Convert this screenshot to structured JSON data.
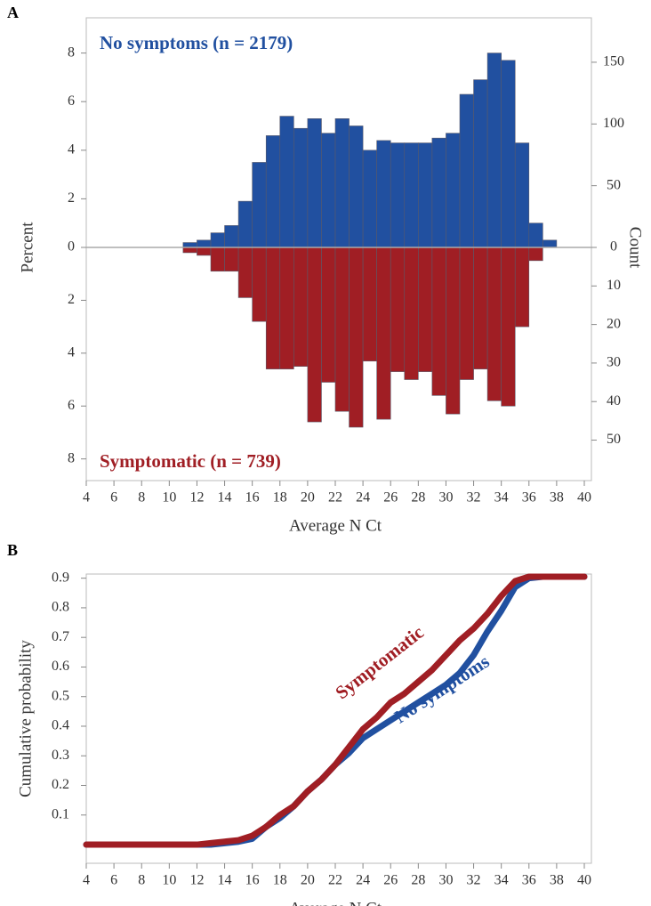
{
  "chart_data": [
    {
      "type": "mirror_histogram",
      "panel": "A",
      "xlabel": "Average N Ct",
      "ylabel": "Percent",
      "y2label": "Count",
      "bins": [
        11,
        12,
        13,
        14,
        15,
        16,
        17,
        18,
        19,
        20,
        21,
        22,
        23,
        24,
        25,
        26,
        27,
        28,
        29,
        30,
        31,
        32,
        33,
        34,
        35,
        36,
        37,
        38
      ],
      "xlim": [
        4,
        40
      ],
      "xticks": [
        4,
        6,
        8,
        10,
        12,
        14,
        16,
        18,
        20,
        22,
        24,
        26,
        28,
        30,
        32,
        34,
        36,
        38,
        40
      ],
      "series": [
        {
          "name": "No symptoms (n = 2179)",
          "color": "#2150a0",
          "direction": "up",
          "values": [
            0.2,
            0.3,
            0.6,
            0.9,
            1.9,
            3.5,
            4.6,
            5.4,
            4.9,
            5.3,
            4.7,
            5.3,
            5.0,
            4.0,
            4.4,
            4.3,
            4.3,
            4.3,
            4.5,
            4.7,
            6.3,
            6.9,
            8.0,
            7.7,
            4.3,
            1.0,
            0.3
          ],
          "ylim": [
            0,
            9.45
          ],
          "yticks": [
            0,
            2,
            4,
            6,
            8
          ],
          "y2lim": [
            0,
            186
          ],
          "y2ticks": [
            0,
            50,
            100,
            150
          ]
        },
        {
          "name": "Symptomatic (n = 739)",
          "color": "#a01e24",
          "direction": "down",
          "values": [
            0.2,
            0.3,
            0.9,
            0.9,
            1.9,
            2.8,
            4.6,
            4.6,
            4.5,
            6.6,
            5.1,
            6.2,
            6.8,
            4.3,
            6.5,
            4.7,
            5.0,
            4.7,
            5.6,
            6.3,
            5.0,
            4.6,
            5.8,
            6.0,
            3.0,
            0.5,
            0
          ],
          "ylim": [
            0,
            8.82
          ],
          "yticks": [
            2,
            4,
            6,
            8
          ],
          "y2lim": [
            0,
            60.5
          ],
          "y2ticks": [
            10,
            20,
            30,
            40,
            50
          ]
        }
      ]
    },
    {
      "type": "line",
      "panel": "B",
      "xlabel": "Average N Ct",
      "ylabel": "Cumulative probability",
      "x": [
        4,
        12,
        13,
        14,
        15,
        16,
        17,
        18,
        19,
        20,
        21,
        22,
        23,
        24,
        25,
        26,
        27,
        28,
        29,
        30,
        31,
        32,
        33,
        34,
        35,
        36,
        37,
        40
      ],
      "xlim": [
        4,
        40
      ],
      "xticks": [
        4,
        6,
        8,
        10,
        12,
        14,
        16,
        18,
        20,
        22,
        24,
        26,
        28,
        30,
        32,
        34,
        36,
        38,
        40
      ],
      "ylim": [
        -0.063,
        0.914
      ],
      "yticks": [
        0.1,
        0.2,
        0.3,
        0.4,
        0.5,
        0.6,
        0.7,
        0.8,
        0.9
      ],
      "series": [
        {
          "name": "No symptoms",
          "color": "#2150a0",
          "values": [
            0,
            0,
            0,
            0.005,
            0.01,
            0.02,
            0.06,
            0.09,
            0.13,
            0.18,
            0.22,
            0.27,
            0.31,
            0.36,
            0.39,
            0.42,
            0.45,
            0.48,
            0.51,
            0.54,
            0.58,
            0.64,
            0.72,
            0.79,
            0.87,
            0.9,
            0.905,
            0.905
          ]
        },
        {
          "name": "Symptomatic",
          "color": "#a01e24",
          "values": [
            0,
            0,
            0.005,
            0.01,
            0.015,
            0.03,
            0.06,
            0.1,
            0.13,
            0.18,
            0.22,
            0.27,
            0.33,
            0.39,
            0.43,
            0.48,
            0.51,
            0.55,
            0.59,
            0.64,
            0.69,
            0.73,
            0.78,
            0.84,
            0.89,
            0.905,
            0.905,
            0.905
          ]
        }
      ]
    }
  ]
}
